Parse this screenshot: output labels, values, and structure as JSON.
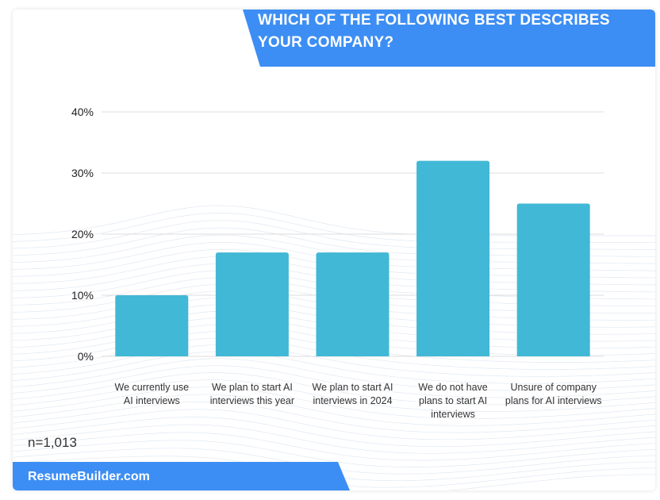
{
  "title": "WHICH OF THE FOLLOWING BEST DESCRIBES YOUR COMPANY?",
  "sample_note": "n=1,013",
  "brand": "ResumeBuilder.com",
  "colors": {
    "accent": "#3d8ef4",
    "bar": "#41b8d5"
  },
  "chart_data": {
    "type": "bar",
    "title": "WHICH OF THE FOLLOWING BEST DESCRIBES YOUR COMPANY?",
    "categories": [
      [
        "We currently use",
        "AI interviews"
      ],
      [
        "We plan to start AI",
        "interviews this year"
      ],
      [
        "We plan to start AI",
        "interviews in 2024"
      ],
      [
        "We do not have",
        "plans to start AI",
        "interviews"
      ],
      [
        "Unsure of company",
        "plans for AI interviews"
      ]
    ],
    "values": [
      10,
      17,
      17,
      32,
      25
    ],
    "ylim": [
      0,
      40
    ],
    "yticks": [
      "0%",
      "10%",
      "20%",
      "30%",
      "40%"
    ],
    "grid": true,
    "xlabel": "",
    "ylabel": ""
  }
}
